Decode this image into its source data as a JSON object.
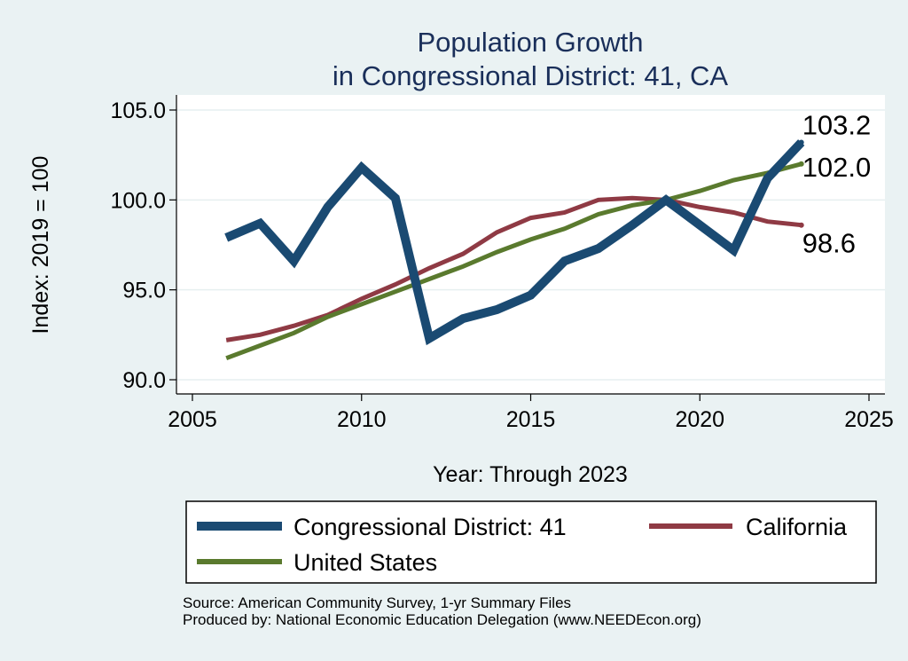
{
  "chart_data": {
    "type": "line",
    "title": [
      "Population Growth",
      "in Congressional District: 41, CA"
    ],
    "xlabel": "Year: Through 2023",
    "ylabel": "Index: 2019 = 100",
    "xlim": [
      2005,
      2025
    ],
    "ylim": [
      90,
      105
    ],
    "xticks": [
      2005,
      2010,
      2015,
      2020,
      2025
    ],
    "yticks": [
      90.0,
      95.0,
      100.0,
      105.0
    ],
    "ytick_labels": [
      "90.0",
      "95.0",
      "100.0",
      "105.0"
    ],
    "grid": true,
    "legend_position": "bottom",
    "x": [
      2006,
      2007,
      2008,
      2009,
      2010,
      2011,
      2012,
      2013,
      2014,
      2015,
      2016,
      2017,
      2018,
      2019,
      2020,
      2021,
      2022,
      2023
    ],
    "series": [
      {
        "name": "Congressional District: 41",
        "color": "#1a4a72",
        "values": [
          97.9,
          98.7,
          96.6,
          99.6,
          101.8,
          100.1,
          92.3,
          93.4,
          93.9,
          94.7,
          96.6,
          97.3,
          98.6,
          100.0,
          98.6,
          97.2,
          101.2,
          103.2
        ],
        "end_label": "103.2"
      },
      {
        "name": "California",
        "color": "#8f3a44",
        "values": [
          92.2,
          92.5,
          93.0,
          93.6,
          94.5,
          95.3,
          96.2,
          97.0,
          98.2,
          99.0,
          99.3,
          100.0,
          100.1,
          100.0,
          99.6,
          99.3,
          98.8,
          98.6
        ],
        "end_label": "98.6"
      },
      {
        "name": "United States",
        "color": "#5a7a2e",
        "values": [
          91.2,
          91.9,
          92.6,
          93.5,
          94.2,
          94.9,
          95.6,
          96.3,
          97.1,
          97.8,
          98.4,
          99.2,
          99.7,
          100.0,
          100.5,
          101.1,
          101.5,
          102.0
        ],
        "end_label": "102.0"
      }
    ]
  },
  "footer": {
    "source": "Source: American Community Survey, 1-yr Summary Files",
    "produced": "Produced by: National Economic Education Delegation (www.NEEDEcon.org)"
  }
}
